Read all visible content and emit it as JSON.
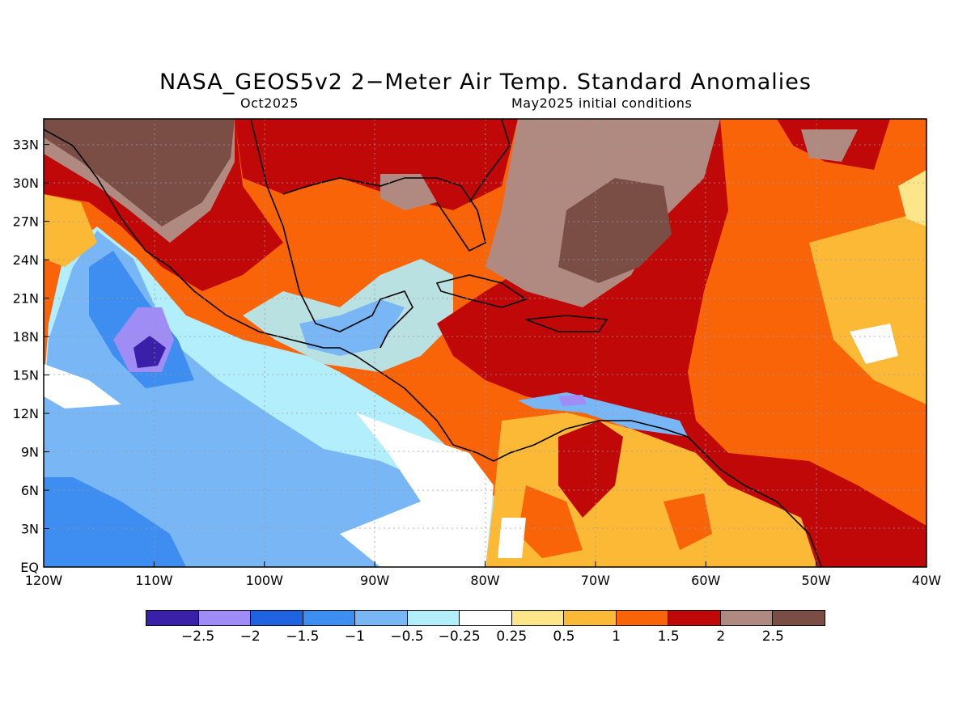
{
  "map": {
    "title": "NASA_GEOS5v2 2−Meter Air Temp. Standard Anomalies",
    "target_month": "Oct2025",
    "initial_conditions": "May2025 initial conditions",
    "lat_labels": [
      "33N",
      "30N",
      "27N",
      "24N",
      "21N",
      "18N",
      "15N",
      "12N",
      "9N",
      "6N",
      "3N",
      "EQ"
    ],
    "lon_labels": [
      "120W",
      "110W",
      "100W",
      "90W",
      "80W",
      "70W",
      "60W",
      "50W",
      "40W"
    ],
    "extent": {
      "lon_min": -120,
      "lon_max": -40,
      "lat_min": 0,
      "lat_max": 35
    }
  },
  "legend": {
    "colors": [
      "#3a1fa8",
      "#9f8cf5",
      "#1f63e0",
      "#3d8ef0",
      "#78b6f5",
      "#b2eefb",
      "#ffffff",
      "#fde68a",
      "#fbb936",
      "#fa6408",
      "#c00808",
      "#b08a80",
      "#7a4e45"
    ],
    "labels": [
      "−2.5",
      "−2",
      "−1.5",
      "−1",
      "−0.5",
      "−0.25",
      "0.25",
      "0.5",
      "1",
      "1.5",
      "2",
      "2.5"
    ]
  }
}
